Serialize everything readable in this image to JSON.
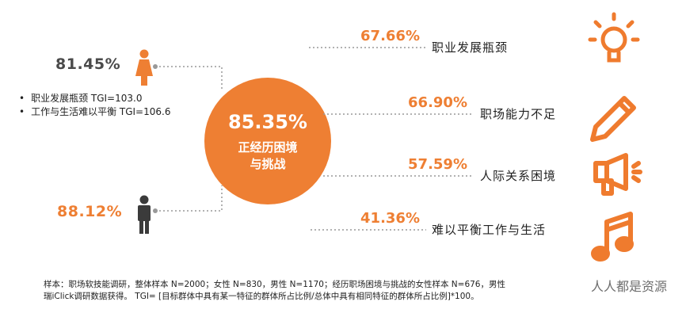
{
  "colors": {
    "accent": "#ee7f33",
    "person": "#3b3b3b",
    "line": "#999999",
    "icon": "#ef7b2e"
  },
  "center": {
    "value": "85.35%",
    "label_line1": "正经历困境",
    "label_line2": "与挑战"
  },
  "left": {
    "female": {
      "value": "81.45%",
      "icon": "female-person-icon"
    },
    "male": {
      "value": "88.12%",
      "icon": "male-person-icon"
    },
    "bullets": [
      "职业发展瓶颈 TGI=103.0",
      "工作与生活难以平衡 TGI=106.6"
    ]
  },
  "chart_data": {
    "type": "bar",
    "title": "",
    "categories": [
      "职业发展瓶颈",
      "职场能力不足",
      "人际关系困境",
      "难以平衡工作与生活"
    ],
    "values": [
      67.66,
      66.9,
      57.59,
      41.36
    ],
    "value_labels": [
      "67.66%",
      "66.90%",
      "57.59%",
      "41.36%"
    ],
    "icons": [
      "lightbulb-icon",
      "pencil-icon",
      "megaphone-icon",
      "music-note-icon"
    ]
  },
  "footnote": {
    "line1": "样本：职场软技能调研，整体样本 N=2000；女性 N=830，男性 N=1170；经历职场困境与挑战的女性样本 N=676，男性",
    "line2": "瑞iClick调研数据获得。 TGI= [目标群体中具有某一特征的群体所占比例/总体中具有相同特征的群体所占比例]*100。"
  },
  "watermark": "人人都是资源"
}
